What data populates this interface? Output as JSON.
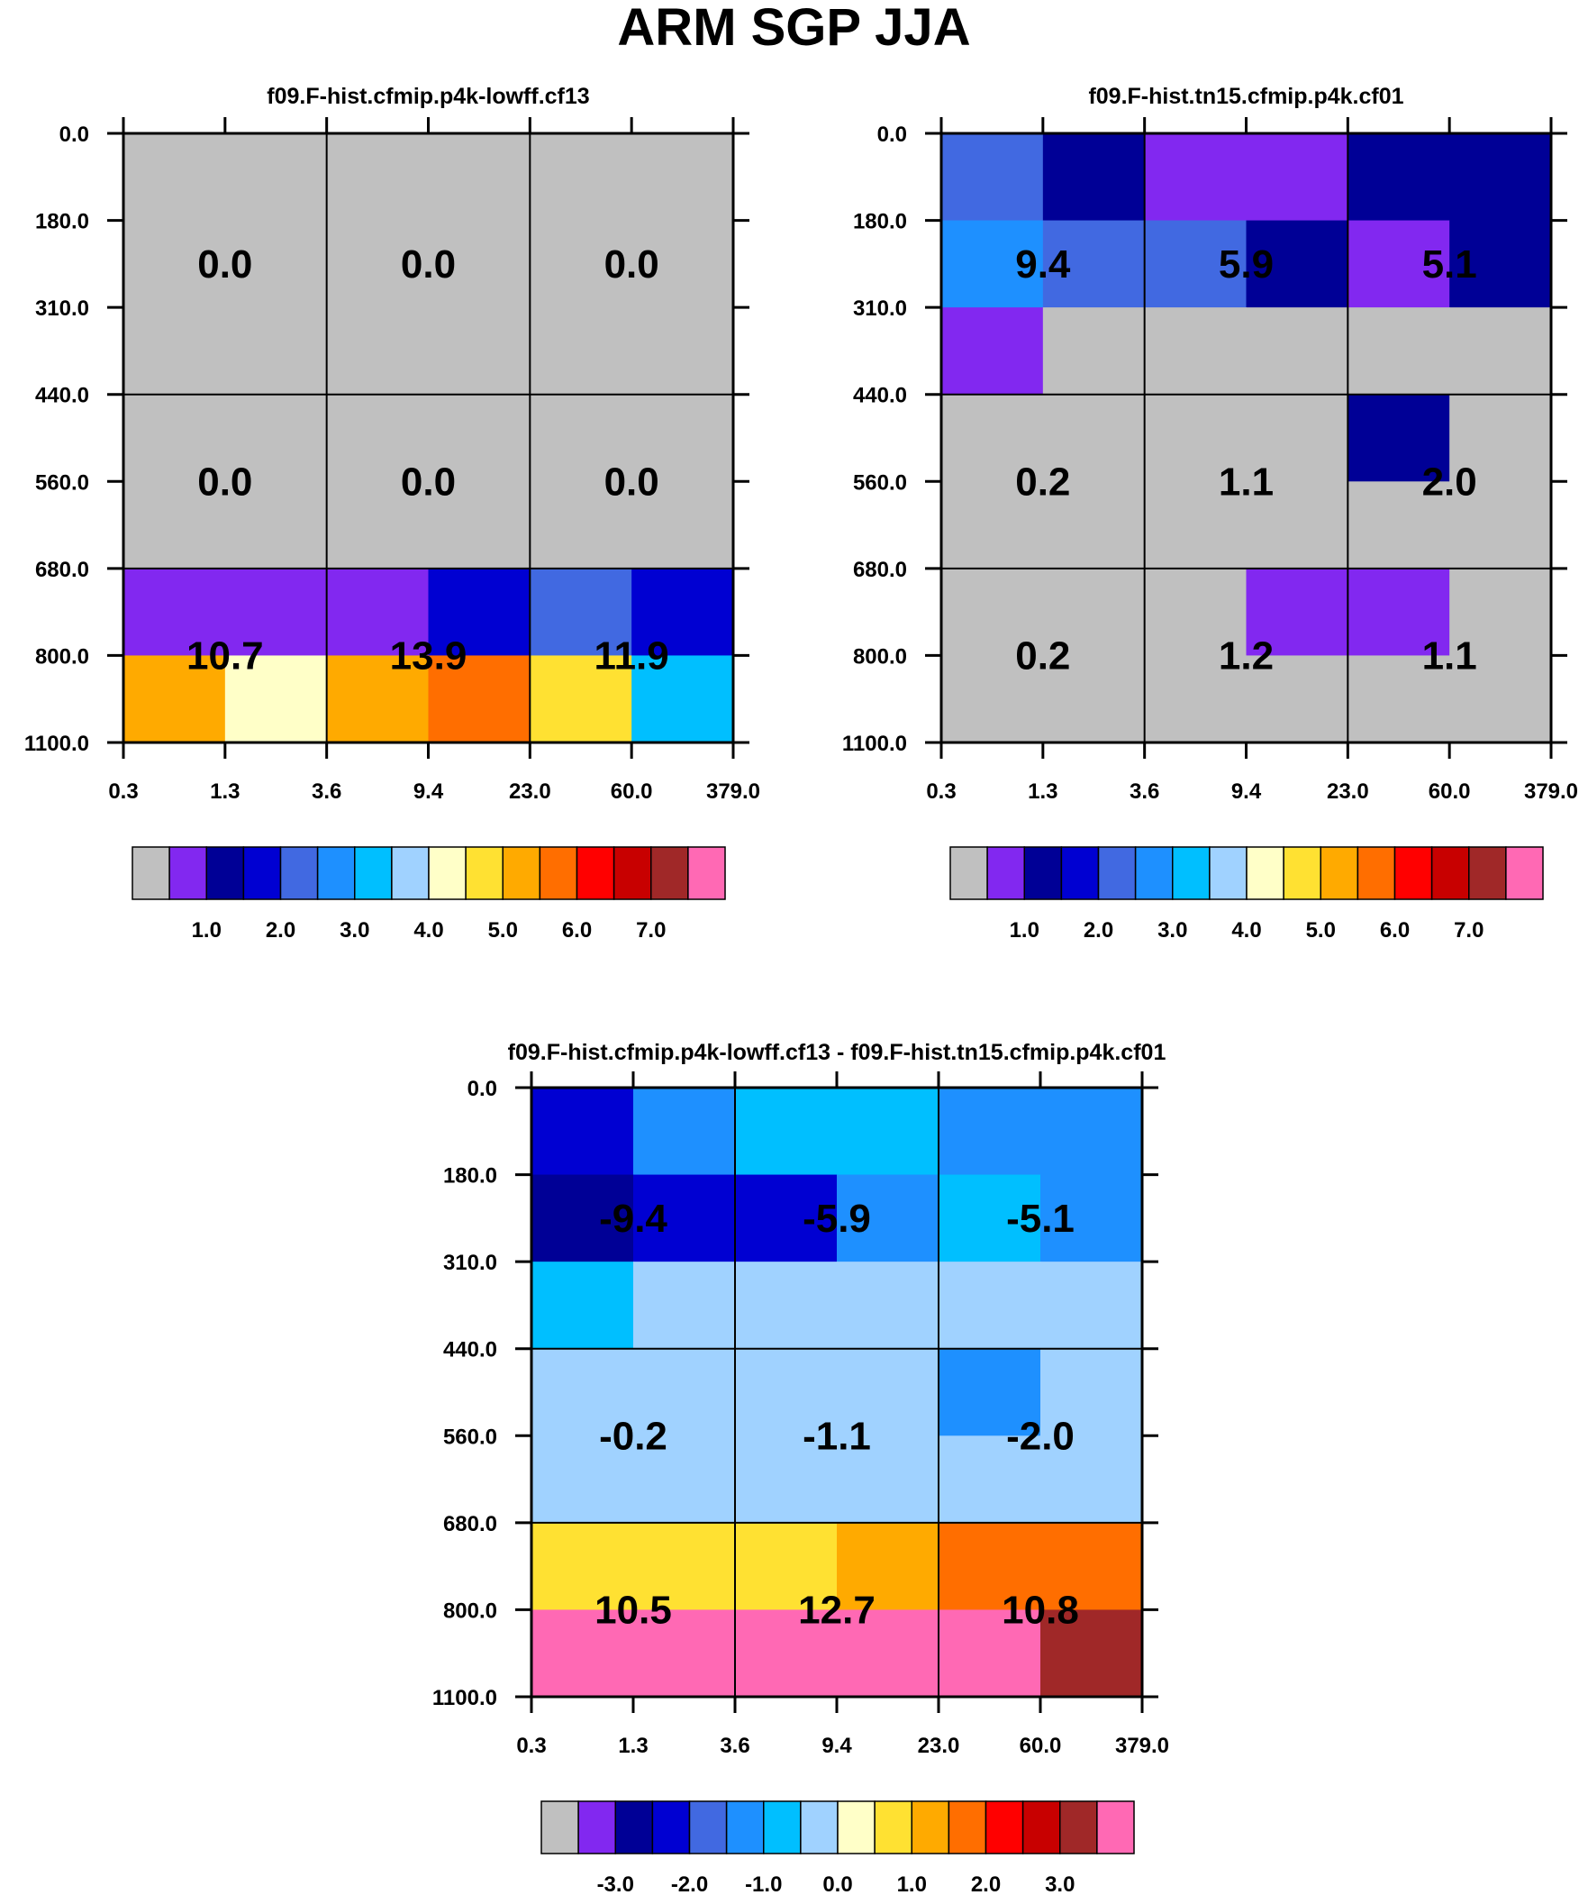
{
  "title": "ARM SGP JJA",
  "y_ticks": [
    "0.0",
    "180.0",
    "310.0",
    "440.0",
    "560.0",
    "680.0",
    "800.0",
    "1100.0"
  ],
  "x_ticks": [
    "0.3",
    "1.3",
    "3.6",
    "9.4",
    "23.0",
    "60.0",
    "379.0"
  ],
  "legend_colors": [
    "#c0c0c0",
    "#8228f0",
    "#000096",
    "#0000d2",
    "#4169e1",
    "#1e90ff",
    "#00bfff",
    "#a0d2ff",
    "#ffffc8",
    "#ffe132",
    "#ffaa00",
    "#ff6e00",
    "#ff0000",
    "#c80000",
    "#a02828",
    "#ff69b4"
  ],
  "chart_data": [
    {
      "type": "heatmap",
      "title": "f09.F-hist.cfmip.p4k-lowff.cf13",
      "x_edges": [
        "0.3",
        "1.3",
        "3.6",
        "9.4",
        "23.0",
        "60.0",
        "379.0"
      ],
      "y_edges": [
        "0.0",
        "180.0",
        "310.0",
        "440.0",
        "560.0",
        "680.0",
        "800.0",
        "1100.0"
      ],
      "cells": [
        [
          0,
          0,
          0,
          0,
          0,
          0
        ],
        [
          0,
          0,
          0,
          0,
          0,
          0
        ],
        [
          0,
          0,
          0,
          0,
          0,
          0
        ],
        [
          0,
          0,
          0,
          0,
          0,
          0
        ],
        [
          0,
          0,
          0,
          0,
          0,
          0
        ],
        [
          1,
          1,
          1,
          3,
          4,
          3
        ],
        [
          10,
          8,
          10,
          11,
          9,
          6
        ]
      ],
      "labels": [
        {
          "row": 0,
          "col": 0,
          "text": "0.0"
        },
        {
          "row": 0,
          "col": 1,
          "text": "0.0"
        },
        {
          "row": 0,
          "col": 2,
          "text": "0.0"
        },
        {
          "row": 1,
          "col": 0,
          "text": "0.0"
        },
        {
          "row": 1,
          "col": 1,
          "text": "0.0"
        },
        {
          "row": 1,
          "col": 2,
          "text": "0.0"
        },
        {
          "row": 2,
          "col": 0,
          "text": "10.7"
        },
        {
          "row": 2,
          "col": 1,
          "text": "13.9"
        },
        {
          "row": 2,
          "col": 2,
          "text": "11.9"
        }
      ],
      "legend": {
        "ticks": [
          "1.0",
          "2.0",
          "3.0",
          "4.0",
          "5.0",
          "6.0",
          "7.0"
        ],
        "first_tick_index": 2
      }
    },
    {
      "type": "heatmap",
      "title": "f09.F-hist.tn15.cfmip.p4k.cf01",
      "x_edges": [
        "0.3",
        "1.3",
        "3.6",
        "9.4",
        "23.0",
        "60.0",
        "379.0"
      ],
      "y_edges": [
        "0.0",
        "180.0",
        "310.0",
        "440.0",
        "560.0",
        "680.0",
        "800.0",
        "1100.0"
      ],
      "cells": [
        [
          4,
          2,
          1,
          1,
          2,
          2
        ],
        [
          5,
          4,
          4,
          2,
          1,
          2
        ],
        [
          1,
          0,
          0,
          0,
          0,
          0
        ],
        [
          0,
          0,
          0,
          0,
          2,
          0
        ],
        [
          0,
          0,
          0,
          0,
          0,
          0
        ],
        [
          0,
          0,
          0,
          1,
          1,
          0
        ],
        [
          0,
          0,
          0,
          0,
          0,
          0
        ]
      ],
      "labels": [
        {
          "row": 0,
          "col": 0,
          "text": "9.4"
        },
        {
          "row": 0,
          "col": 1,
          "text": "5.9"
        },
        {
          "row": 0,
          "col": 2,
          "text": "5.1"
        },
        {
          "row": 1,
          "col": 0,
          "text": "0.2"
        },
        {
          "row": 1,
          "col": 1,
          "text": "1.1"
        },
        {
          "row": 1,
          "col": 2,
          "text": "2.0"
        },
        {
          "row": 2,
          "col": 0,
          "text": "0.2"
        },
        {
          "row": 2,
          "col": 1,
          "text": "1.2"
        },
        {
          "row": 2,
          "col": 2,
          "text": "1.1"
        }
      ],
      "legend": {
        "ticks": [
          "1.0",
          "2.0",
          "3.0",
          "4.0",
          "5.0",
          "6.0",
          "7.0"
        ],
        "first_tick_index": 2
      }
    },
    {
      "type": "heatmap",
      "title": "f09.F-hist.cfmip.p4k-lowff.cf13 - f09.F-hist.tn15.cfmip.p4k.cf01",
      "x_edges": [
        "0.3",
        "1.3",
        "3.6",
        "9.4",
        "23.0",
        "60.0",
        "379.0"
      ],
      "y_edges": [
        "0.0",
        "180.0",
        "310.0",
        "440.0",
        "560.0",
        "680.0",
        "800.0",
        "1100.0"
      ],
      "cells": [
        [
          3,
          5,
          6,
          6,
          5,
          5
        ],
        [
          2,
          3,
          3,
          5,
          6,
          5
        ],
        [
          6,
          7,
          7,
          7,
          7,
          7
        ],
        [
          7,
          7,
          7,
          7,
          5,
          7
        ],
        [
          7,
          7,
          7,
          7,
          7,
          7
        ],
        [
          9,
          9,
          9,
          10,
          11,
          11
        ],
        [
          15,
          15,
          15,
          15,
          15,
          14
        ]
      ],
      "labels": [
        {
          "row": 0,
          "col": 0,
          "text": "-9.4"
        },
        {
          "row": 0,
          "col": 1,
          "text": "-5.9"
        },
        {
          "row": 0,
          "col": 2,
          "text": "-5.1"
        },
        {
          "row": 1,
          "col": 0,
          "text": "-0.2"
        },
        {
          "row": 1,
          "col": 1,
          "text": "-1.1"
        },
        {
          "row": 1,
          "col": 2,
          "text": "-2.0"
        },
        {
          "row": 2,
          "col": 0,
          "text": "10.5"
        },
        {
          "row": 2,
          "col": 1,
          "text": "12.7"
        },
        {
          "row": 2,
          "col": 2,
          "text": "10.8"
        }
      ],
      "legend": {
        "ticks": [
          "-3.0",
          "-2.0",
          "-1.0",
          "0.0",
          "1.0",
          "2.0",
          "3.0"
        ],
        "first_tick_index": 2
      }
    }
  ]
}
